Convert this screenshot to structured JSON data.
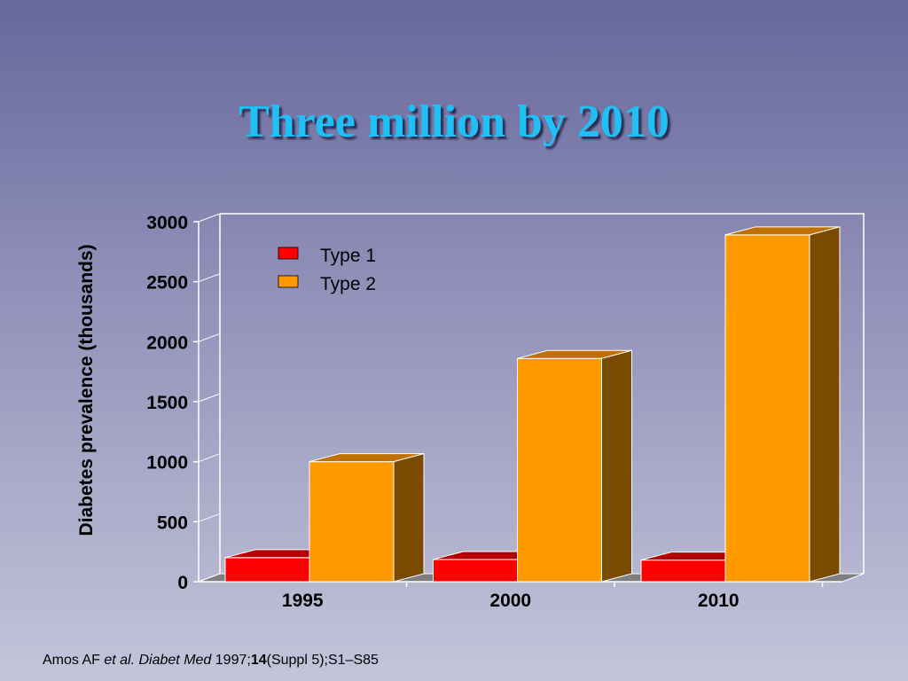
{
  "chart_data": {
    "type": "bar",
    "title": "Three million by 2010",
    "ylabel": "Diabetes prevalence (thousands)",
    "xlabel": "",
    "categories": [
      "1995",
      "2000",
      "2010"
    ],
    "series": [
      {
        "name": "Type 1",
        "values": [
          200,
          185,
          180
        ],
        "color": "#ff0000",
        "side_color": "#7a0000",
        "top_color": "#b30000"
      },
      {
        "name": "Type 2",
        "values": [
          1000,
          1860,
          2890
        ],
        "color": "#ff9900",
        "side_color": "#7a4a00",
        "top_color": "#c07000"
      }
    ],
    "ylim": [
      0,
      3000
    ],
    "yticks": [
      0,
      500,
      1000,
      1500,
      2000,
      2500,
      3000
    ],
    "grid": false,
    "legend_position": "top-left"
  },
  "citation": {
    "authors": "Amos AF",
    "etal": "et al.",
    "journal": "Diabet Med",
    "year": "1997;",
    "volume": "14",
    "rest": "(Suppl 5);S1–S85"
  }
}
